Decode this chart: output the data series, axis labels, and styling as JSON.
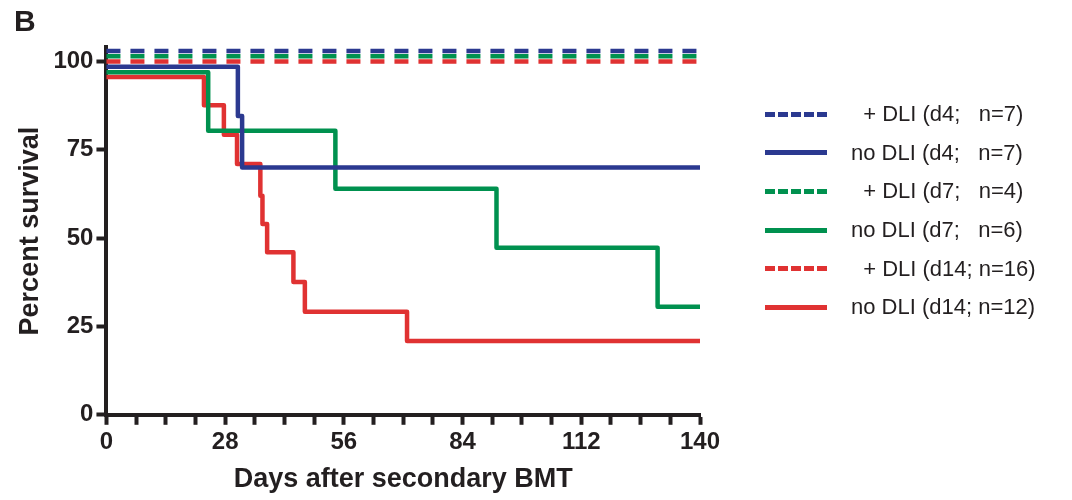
{
  "chart_data": {
    "type": "step",
    "title": "B",
    "xlabel": "Days after secondary BMT",
    "ylabel": "Percent survival",
    "xlim": [
      0,
      140
    ],
    "xticks": [
      0,
      {
        "value": 7,
        "label": null
      },
      {
        "value": 14,
        "label": null
      },
      {
        "value": 21,
        "label": null
      },
      28,
      {
        "value": 35,
        "label": null
      },
      {
        "value": 42,
        "label": null
      },
      {
        "value": 49,
        "label": null
      },
      56,
      {
        "value": 63,
        "label": null
      },
      {
        "value": 70,
        "label": null
      },
      {
        "value": 77,
        "label": null
      },
      84,
      {
        "value": 91,
        "label": null
      },
      {
        "value": 98,
        "label": null
      },
      {
        "value": 105,
        "label": null
      },
      112,
      {
        "value": 119,
        "label": null
      },
      {
        "value": 126,
        "label": null
      },
      {
        "value": 133,
        "label": null
      },
      140
    ],
    "ylim": [
      0,
      104
    ],
    "yticks": [
      0,
      25,
      50,
      75,
      100
    ],
    "grid": false,
    "legend": "right",
    "marker": "none",
    "series": [
      {
        "name": "  + DLI (d4;   n=7)",
        "color": "#2b3990",
        "line_style": "dashed",
        "x": [
          0,
          140
        ],
        "values": [
          103,
          103
        ]
      },
      {
        "name": "no DLI (d4;   n=7)",
        "color": "#2b3990",
        "line_style": "solid",
        "x": [
          0,
          31,
          32,
          140
        ],
        "values": [
          98.5,
          84.6,
          70,
          70
        ]
      },
      {
        "name": "  + DLI (d7;   n=4)",
        "color": "#00914f",
        "line_style": "dashed",
        "x": [
          0,
          140
        ],
        "values": [
          101.5,
          101.5
        ]
      },
      {
        "name": "no DLI (d7;   n=6)",
        "color": "#00914f",
        "line_style": "solid",
        "x": [
          0,
          24,
          54,
          92,
          130,
          140
        ],
        "values": [
          97,
          80.4,
          64,
          47.3,
          30.6,
          30.6
        ]
      },
      {
        "name": "  + DLI (d14; n=16)",
        "color": "#e03232",
        "line_style": "dashed",
        "x": [
          0,
          140
        ],
        "values": [
          100,
          100
        ]
      },
      {
        "name": "no DLI (d14; n=12)",
        "color": "#e03232",
        "line_style": "solid",
        "x": [
          0,
          23,
          27.7,
          30.8,
          36.3,
          36.8,
          37.9,
          44.1,
          46.8,
          70.9,
          140
        ],
        "values": [
          95.6,
          87.6,
          79.3,
          71,
          62,
          54,
          46,
          37.6,
          29.2,
          20.9,
          20.9
        ]
      }
    ]
  }
}
